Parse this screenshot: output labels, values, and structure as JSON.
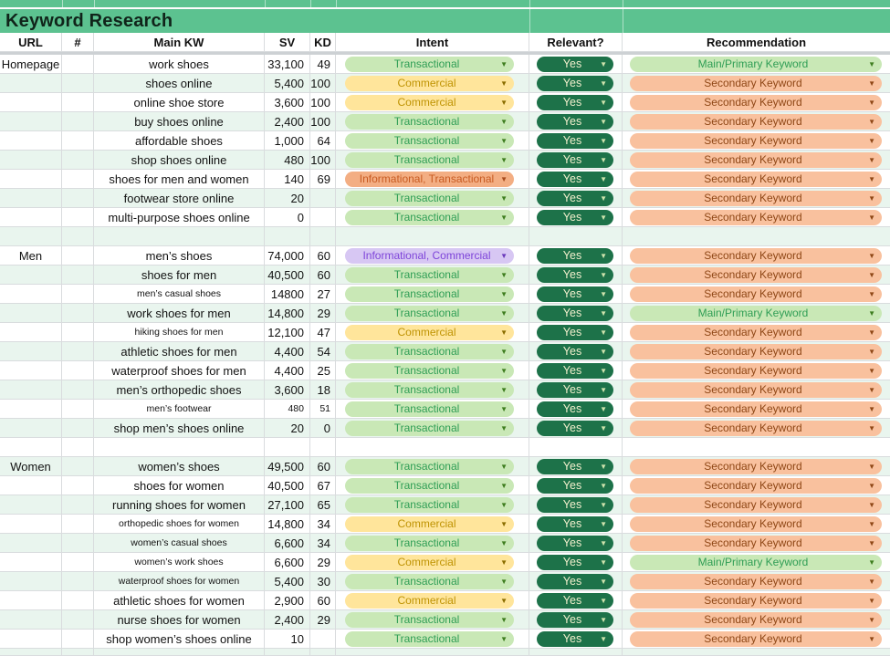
{
  "title": "Keyword Research",
  "columns": [
    "URL",
    "#",
    "Main KW",
    "SV",
    "KD",
    "Intent",
    "Relevant?",
    "Recommendation"
  ],
  "icons": {
    "dropdown_arrow": "▼"
  },
  "colors": {
    "header_green": "#5cc290",
    "row_tint": "#e9f5ee",
    "gridline": "#d9dcde",
    "intent_transactional_bg": "#c9e8b6",
    "intent_transactional_text": "#2f9e55",
    "intent_commercial_bg": "#ffe59b",
    "intent_commercial_text": "#bf9303",
    "intent_informational_transactional_bg": "#f3ae83",
    "intent_informational_transactional_text": "#c85b22",
    "intent_informational_commercial_bg": "#d7c7f3",
    "intent_informational_commercial_text": "#7e44d9",
    "relevant_yes_bg": "#1d7249",
    "relevant_yes_text": "#f2efcd",
    "recommendation_primary_bg": "#c9e8b6",
    "recommendation_primary_text": "#2f9e55",
    "recommendation_secondary_bg": "#f9c19e",
    "recommendation_secondary_text": "#8f4716"
  },
  "rows": [
    {
      "type": "data",
      "url": "Homepage",
      "kw": "work shoes",
      "sv": "33,100",
      "kd": "49",
      "intent": "Transactional",
      "intent_style": "transactional",
      "relevant": "Yes",
      "rec": "Main/Primary Keyword",
      "rec_style": "primary",
      "tint": false
    },
    {
      "type": "data",
      "url": "",
      "kw": "shoes online",
      "sv": "5,400",
      "kd": "100",
      "intent": "Commercial",
      "intent_style": "commercial",
      "relevant": "Yes",
      "rec": "Secondary Keyword",
      "rec_style": "secondary",
      "tint": true
    },
    {
      "type": "data",
      "url": "",
      "kw": "online shoe store",
      "sv": "3,600",
      "kd": "100",
      "intent": "Commercial",
      "intent_style": "commercial",
      "relevant": "Yes",
      "rec": "Secondary Keyword",
      "rec_style": "secondary",
      "tint": false
    },
    {
      "type": "data",
      "url": "",
      "kw": "buy shoes online",
      "sv": "2,400",
      "kd": "100",
      "intent": "Transactional",
      "intent_style": "transactional",
      "relevant": "Yes",
      "rec": "Secondary Keyword",
      "rec_style": "secondary",
      "tint": true
    },
    {
      "type": "data",
      "url": "",
      "kw": "affordable shoes",
      "sv": "1,000",
      "kd": "64",
      "intent": "Transactional",
      "intent_style": "transactional",
      "relevant": "Yes",
      "rec": "Secondary Keyword",
      "rec_style": "secondary",
      "tint": false
    },
    {
      "type": "data",
      "url": "",
      "kw": "shop shoes online",
      "sv": "480",
      "kd": "100",
      "intent": "Transactional",
      "intent_style": "transactional",
      "relevant": "Yes",
      "rec": "Secondary Keyword",
      "rec_style": "secondary",
      "tint": true
    },
    {
      "type": "data",
      "url": "",
      "kw": "shoes for men and women",
      "sv": "140",
      "kd": "69",
      "intent": "Informational, Transactional",
      "intent_style": "informational_transactional",
      "relevant": "Yes",
      "rec": "Secondary Keyword",
      "rec_style": "secondary",
      "tint": false
    },
    {
      "type": "data",
      "url": "",
      "kw": "footwear store online",
      "sv": "20",
      "kd": "",
      "intent": "Transactional",
      "intent_style": "transactional",
      "relevant": "Yes",
      "rec": "Secondary Keyword",
      "rec_style": "secondary",
      "tint": true
    },
    {
      "type": "data",
      "url": "",
      "kw": "multi-purpose shoes online",
      "sv": "0",
      "kd": "",
      "intent": "Transactional",
      "intent_style": "transactional",
      "relevant": "Yes",
      "rec": "Secondary Keyword",
      "rec_style": "secondary",
      "tint": false
    },
    {
      "type": "gap",
      "tint": true
    },
    {
      "type": "data",
      "url": "Men",
      "kw": "men’s shoes",
      "sv": "74,000",
      "kd": "60",
      "intent": "Informational, Commercial",
      "intent_style": "informational_commercial",
      "relevant": "Yes",
      "rec": "Secondary Keyword",
      "rec_style": "secondary",
      "tint": false
    },
    {
      "type": "data",
      "url": "",
      "kw": "shoes for men",
      "sv": "40,500",
      "kd": "60",
      "intent": "Transactional",
      "intent_style": "transactional",
      "relevant": "Yes",
      "rec": "Secondary Keyword",
      "rec_style": "secondary",
      "tint": true
    },
    {
      "type": "data",
      "url": "",
      "kw": "men’s casual shoes",
      "kw_small": true,
      "sv": "14800",
      "kd": "27",
      "intent": "Transactional",
      "intent_style": "transactional",
      "relevant": "Yes",
      "rec": "Secondary Keyword",
      "rec_style": "secondary",
      "tint": false
    },
    {
      "type": "data",
      "url": "",
      "kw": "work shoes for men",
      "sv": "14,800",
      "kd": "29",
      "intent": "Transactional",
      "intent_style": "transactional",
      "relevant": "Yes",
      "rec": "Main/Primary Keyword",
      "rec_style": "primary",
      "tint": true
    },
    {
      "type": "data",
      "url": "",
      "kw": "hiking shoes for men",
      "kw_small": true,
      "sv": "12,100",
      "kd": "47",
      "intent": "Commercial",
      "intent_style": "commercial",
      "relevant": "Yes",
      "rec": "Secondary Keyword",
      "rec_style": "secondary",
      "tint": false
    },
    {
      "type": "data",
      "url": "",
      "kw": "athletic shoes for men",
      "sv": "4,400",
      "kd": "54",
      "intent": "Transactional",
      "intent_style": "transactional",
      "relevant": "Yes",
      "rec": "Secondary Keyword",
      "rec_style": "secondary",
      "tint": true
    },
    {
      "type": "data",
      "url": "",
      "kw": "waterproof shoes for men",
      "sv": "4,400",
      "kd": "25",
      "intent": "Transactional",
      "intent_style": "transactional",
      "relevant": "Yes",
      "rec": "Secondary Keyword",
      "rec_style": "secondary",
      "tint": false
    },
    {
      "type": "data",
      "url": "",
      "kw": "men’s orthopedic shoes",
      "sv": "3,600",
      "kd": "18",
      "intent": "Transactional",
      "intent_style": "transactional",
      "relevant": "Yes",
      "rec": "Secondary Keyword",
      "rec_style": "secondary",
      "tint": true
    },
    {
      "type": "data",
      "url": "",
      "kw": "men’s footwear",
      "kw_small": true,
      "num_small": true,
      "sv": "480",
      "kd": "51",
      "intent": "Transactional",
      "intent_style": "transactional",
      "relevant": "Yes",
      "rec": "Secondary Keyword",
      "rec_style": "secondary",
      "tint": false
    },
    {
      "type": "data",
      "url": "",
      "kw": "shop men’s shoes online",
      "sv": "20",
      "kd": "0",
      "intent": "Transactional",
      "intent_style": "transactional",
      "relevant": "Yes",
      "rec": "Secondary Keyword",
      "rec_style": "secondary",
      "tint": true
    },
    {
      "type": "gap",
      "tint": false
    },
    {
      "type": "data",
      "url": "Women",
      "kw": "women’s shoes",
      "sv": "49,500",
      "kd": "60",
      "intent": "Transactional",
      "intent_style": "transactional",
      "relevant": "Yes",
      "rec": "Secondary Keyword",
      "rec_style": "secondary",
      "tint": true
    },
    {
      "type": "data",
      "url": "",
      "kw": "shoes for women",
      "sv": "40,500",
      "kd": "67",
      "intent": "Transactional",
      "intent_style": "transactional",
      "relevant": "Yes",
      "rec": "Secondary Keyword",
      "rec_style": "secondary",
      "tint": false
    },
    {
      "type": "data",
      "url": "",
      "kw": "running shoes for women",
      "sv": "27,100",
      "kd": "65",
      "intent": "Transactional",
      "intent_style": "transactional",
      "relevant": "Yes",
      "rec": "Secondary Keyword",
      "rec_style": "secondary",
      "tint": true
    },
    {
      "type": "data",
      "url": "",
      "kw": "orthopedic shoes for women",
      "kw_small": true,
      "sv": "14,800",
      "kd": "34",
      "intent": "Commercial",
      "intent_style": "commercial",
      "relevant": "Yes",
      "rec": "Secondary Keyword",
      "rec_style": "secondary",
      "tint": false
    },
    {
      "type": "data",
      "url": "",
      "kw": "women’s casual shoes",
      "kw_small": true,
      "sv": "6,600",
      "kd": "34",
      "intent": "Transactional",
      "intent_style": "transactional",
      "relevant": "Yes",
      "rec": "Secondary Keyword",
      "rec_style": "secondary",
      "tint": true
    },
    {
      "type": "data",
      "url": "",
      "kw": "women’s work shoes",
      "kw_small": true,
      "sv": "6,600",
      "kd": "29",
      "intent": "Commercial",
      "intent_style": "commercial",
      "relevant": "Yes",
      "rec": "Main/Primary Keyword",
      "rec_style": "primary",
      "tint": false
    },
    {
      "type": "data",
      "url": "",
      "kw": "waterproof shoes for women",
      "kw_small": true,
      "sv": "5,400",
      "kd": "30",
      "intent": "Transactional",
      "intent_style": "transactional",
      "relevant": "Yes",
      "rec": "Secondary Keyword",
      "rec_style": "secondary",
      "tint": true
    },
    {
      "type": "data",
      "url": "",
      "kw": "athletic shoes for women",
      "sv": "2,900",
      "kd": "60",
      "intent": "Commercial",
      "intent_style": "commercial",
      "relevant": "Yes",
      "rec": "Secondary Keyword",
      "rec_style": "secondary",
      "tint": false
    },
    {
      "type": "data",
      "url": "",
      "kw": "nurse shoes for women",
      "sv": "2,400",
      "kd": "29",
      "intent": "Transactional",
      "intent_style": "transactional",
      "relevant": "Yes",
      "rec": "Secondary Keyword",
      "rec_style": "secondary",
      "tint": true
    },
    {
      "type": "data",
      "url": "",
      "kw": "shop women’s shoes online",
      "sv": "10",
      "kd": "",
      "intent": "Transactional",
      "intent_style": "transactional",
      "relevant": "Yes",
      "rec": "Secondary Keyword",
      "rec_style": "secondary",
      "tint": false
    },
    {
      "type": "gap",
      "tint": true,
      "partial": true
    }
  ]
}
